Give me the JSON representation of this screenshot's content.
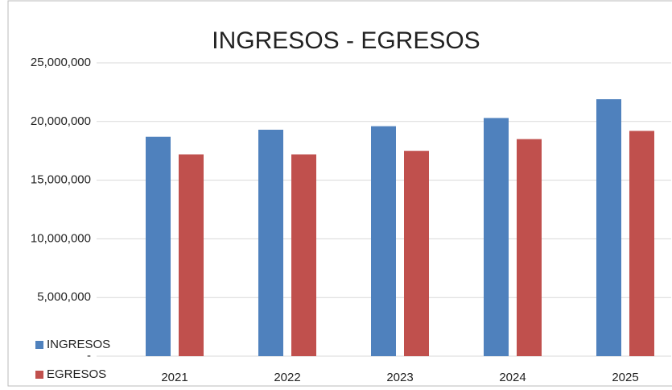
{
  "chart_data": {
    "type": "bar",
    "title": "INGRESOS - EGRESOS",
    "categories": [
      "2021",
      "2022",
      "2023",
      "2024",
      "2025"
    ],
    "series": [
      {
        "name": "INGRESOS",
        "color": "#4f81bd",
        "values": [
          18700000,
          19300000,
          19600000,
          20300000,
          21900000
        ]
      },
      {
        "name": "EGRESOS",
        "color": "#c0504d",
        "values": [
          17200000,
          17200000,
          17500000,
          18500000,
          19200000
        ]
      }
    ],
    "ylim": [
      0,
      25000000
    ],
    "yticks": [
      {
        "value": 0,
        "label": "-"
      },
      {
        "value": 5000000,
        "label": "5,000,000"
      },
      {
        "value": 10000000,
        "label": "10,000,000"
      },
      {
        "value": 15000000,
        "label": "15,000,000"
      },
      {
        "value": 20000000,
        "label": "20,000,000"
      },
      {
        "value": 25000000,
        "label": "25,000,000"
      }
    ],
    "grid": true,
    "legend": "lower left"
  }
}
